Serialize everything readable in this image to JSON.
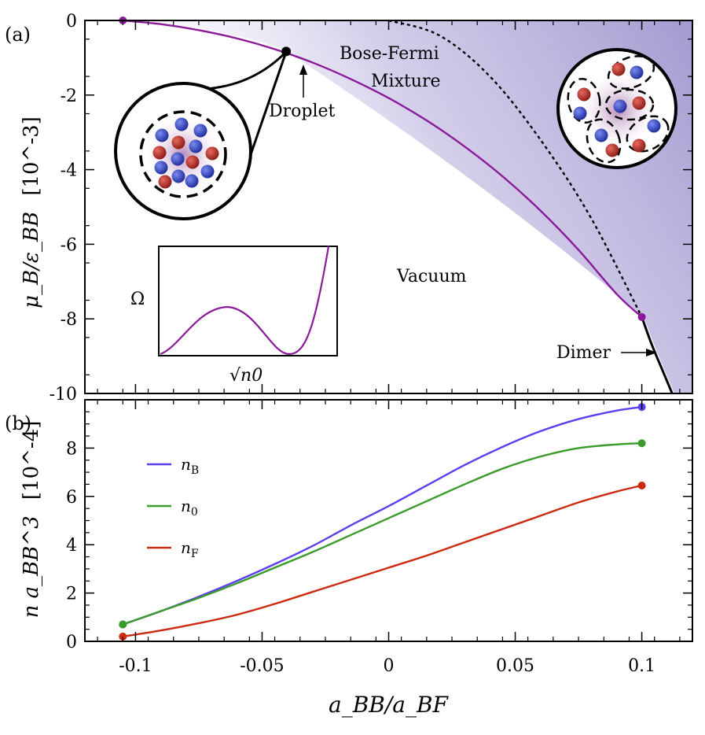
{
  "chart_data": [
    {
      "panel": "(a)",
      "type": "line",
      "xlabel": "a_BB/a_BF",
      "ylabel": "μ_B/ε_BB",
      "ylabel_unit": "[10^-3]",
      "xlim": [
        -0.12,
        0.12
      ],
      "ylim": [
        -10,
        0
      ],
      "yticks": [
        0,
        -2,
        -4,
        -6,
        -8,
        -10
      ],
      "ytick_labels": [
        "0",
        "-2",
        "-4",
        "-6",
        "-8",
        "-10"
      ],
      "series": [
        {
          "name": "droplet boundary",
          "color": "#8a1a9a",
          "style": "solid",
          "x": [
            -0.105,
            -0.09,
            -0.075,
            -0.06,
            -0.045,
            -0.03,
            -0.015,
            0.0,
            0.015,
            0.03,
            0.045,
            0.06,
            0.075,
            0.09,
            0.1
          ],
          "y": [
            0.0,
            -0.1,
            -0.26,
            -0.48,
            -0.77,
            -1.13,
            -1.57,
            -2.08,
            -2.68,
            -3.38,
            -4.18,
            -5.1,
            -6.15,
            -7.33,
            -7.95
          ]
        },
        {
          "name": "mixture boundary",
          "color": "#000000",
          "style": "dotted",
          "x": [
            0.0,
            0.02,
            0.04,
            0.06,
            0.08,
            0.1
          ],
          "y": [
            0.0,
            -0.4,
            -1.5,
            -3.2,
            -5.3,
            -7.95
          ]
        },
        {
          "name": "dimer line",
          "color": "#000000",
          "style": "solid",
          "x": [
            0.1,
            0.104,
            0.108,
            0.112
          ],
          "y": [
            -7.95,
            -8.7,
            -9.35,
            -10.0
          ]
        }
      ],
      "points": [
        {
          "name": "start",
          "x": -0.105,
          "y": 0.0,
          "color": "#8a1a9a"
        },
        {
          "name": "droplet-marker",
          "x": -0.0405,
          "y": -0.83,
          "color": "#000000"
        },
        {
          "name": "end",
          "x": 0.1,
          "y": -7.95,
          "color": "#8a1a9a"
        }
      ],
      "region_labels": [
        "Bose-Fermi",
        "Mixture",
        "Vacuum"
      ],
      "annotations": [
        "Droplet",
        "Dimer"
      ],
      "inset": {
        "xlabel": "√n0",
        "ylabel": "Ω",
        "type": "line",
        "color": "#8a1a9a"
      }
    },
    {
      "panel": "(b)",
      "type": "line",
      "xlabel": "a_BB/a_BF",
      "ylabel": "n a_BB^3",
      "ylabel_unit": "[10^-4]",
      "xlim": [
        -0.12,
        0.12
      ],
      "ylim": [
        0,
        10
      ],
      "xticks": [
        -0.1,
        -0.05,
        0,
        0.05,
        0.1
      ],
      "xtick_labels": [
        "-0.1",
        "-0.05",
        "0",
        "0.05",
        "0.1"
      ],
      "yticks": [
        0,
        2,
        4,
        6,
        8
      ],
      "ytick_labels": [
        "0",
        "2",
        "4",
        "6",
        "8"
      ],
      "x": [
        -0.105,
        -0.09,
        -0.075,
        -0.06,
        -0.045,
        -0.03,
        -0.015,
        0.0,
        0.015,
        0.03,
        0.045,
        0.06,
        0.075,
        0.09,
        0.1
      ],
      "series": [
        {
          "name": "n_B",
          "color": "#5b3ff0",
          "values": [
            0.7,
            1.25,
            1.85,
            2.5,
            3.2,
            3.95,
            4.8,
            5.6,
            6.45,
            7.3,
            8.05,
            8.7,
            9.2,
            9.55,
            9.7
          ]
        },
        {
          "name": "n_0",
          "color": "#3a9a2a",
          "values": [
            0.7,
            1.25,
            1.8,
            2.4,
            3.05,
            3.7,
            4.4,
            5.1,
            5.8,
            6.5,
            7.15,
            7.65,
            8.0,
            8.15,
            8.2
          ]
        },
        {
          "name": "n_F",
          "color": "#cc2a10",
          "values": [
            0.2,
            0.45,
            0.75,
            1.1,
            1.55,
            2.05,
            2.55,
            3.05,
            3.55,
            4.1,
            4.65,
            5.2,
            5.75,
            6.2,
            6.45
          ]
        }
      ],
      "legend": [
        {
          "symbol": "n",
          "sub": "B",
          "color": "#5b3ff0"
        },
        {
          "symbol": "n",
          "sub": "0",
          "color": "#3a9a2a"
        },
        {
          "symbol": "n",
          "sub": "F",
          "color": "#cc2a10"
        }
      ],
      "legend_position": "top-left"
    }
  ]
}
